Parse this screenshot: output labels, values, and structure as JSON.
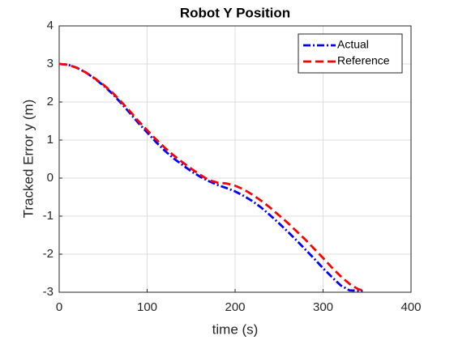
{
  "chart_data": {
    "type": "line",
    "title": "Robot Y Position",
    "x_label": "time (s)",
    "y_label": "Tracked Error y (m)",
    "x": [
      0,
      10,
      20,
      30,
      40,
      50,
      60,
      70,
      80,
      90,
      100,
      110,
      120,
      130,
      140,
      150,
      160,
      170,
      180,
      190,
      200,
      210,
      220,
      230,
      240,
      250,
      260,
      270,
      280,
      290,
      300,
      310,
      320,
      330,
      340,
      345
    ],
    "series": [
      {
        "name": "Actual",
        "color": "#0000ff",
        "dash": "dashdot",
        "values": [
          3,
          2.98,
          2.9,
          2.78,
          2.62,
          2.44,
          2.23,
          1.98,
          1.72,
          1.45,
          1.2,
          0.95,
          0.72,
          0.52,
          0.35,
          0.18,
          0.04,
          -0.08,
          -0.18,
          -0.26,
          -0.35,
          -0.47,
          -0.61,
          -0.78,
          -0.98,
          -1.19,
          -1.41,
          -1.64,
          -1.88,
          -2.12,
          -2.37,
          -2.6,
          -2.82,
          -2.95,
          -2.96,
          -2.96
        ]
      },
      {
        "name": "Reference",
        "color": "#ff0000",
        "dash": "dashed",
        "values": [
          3,
          2.98,
          2.9,
          2.78,
          2.63,
          2.46,
          2.26,
          2.02,
          1.77,
          1.5,
          1.26,
          1.02,
          0.8,
          0.6,
          0.42,
          0.25,
          0.09,
          -0.05,
          -0.12,
          -0.14,
          -0.2,
          -0.3,
          -0.44,
          -0.6,
          -0.78,
          -0.98,
          -1.18,
          -1.4,
          -1.62,
          -1.86,
          -2.1,
          -2.35,
          -2.58,
          -2.78,
          -2.92,
          -2.95
        ]
      }
    ],
    "xlim": [
      0,
      400
    ],
    "xticks": [
      0,
      100,
      200,
      300,
      400
    ],
    "ylim": [
      -3,
      4
    ],
    "yticks": [
      -3,
      -2,
      -1,
      0,
      1,
      2,
      3,
      4
    ],
    "grid": true,
    "legend": "top-right"
  }
}
